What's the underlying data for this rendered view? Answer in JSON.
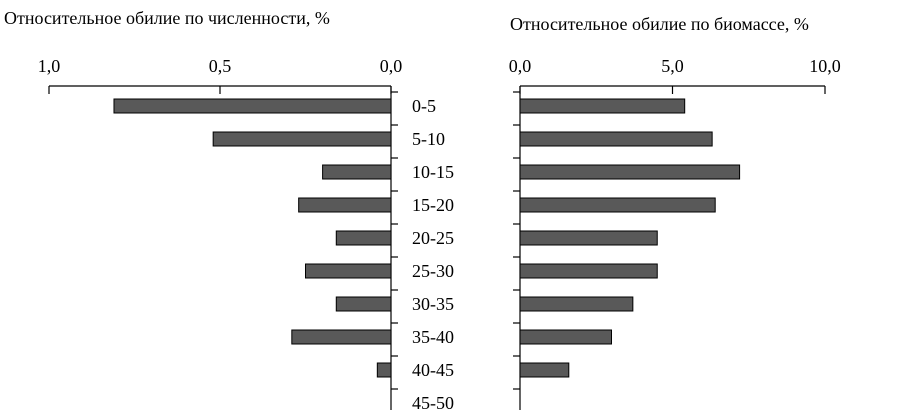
{
  "chart_data": [
    {
      "type": "bar",
      "orientation": "horizontal",
      "direction": "reversed",
      "title": "Относительное обилие по численности, %",
      "categories": [
        "0-5",
        "5-10",
        "10-15",
        "15-20",
        "20-25",
        "25-30",
        "30-35",
        "35-40",
        "40-45",
        "45-50"
      ],
      "values": [
        0.81,
        0.52,
        0.2,
        0.27,
        0.16,
        0.25,
        0.16,
        0.29,
        0.04,
        0
      ],
      "xlim": [
        0,
        1
      ],
      "ticks": [
        {
          "value": 1.0,
          "label": "1,0"
        },
        {
          "value": 0.5,
          "label": "0,5"
        },
        {
          "value": 0.0,
          "label": "0,0"
        }
      ],
      "axis_position": "top",
      "bar_color": "#595959"
    },
    {
      "type": "bar",
      "orientation": "horizontal",
      "direction": "normal",
      "title": "Относительное обилие по биомассе, %",
      "categories": [
        "0-5",
        "5-10",
        "10-15",
        "15-20",
        "20-25",
        "25-30",
        "30-35",
        "35-40",
        "40-45",
        "45-50"
      ],
      "values": [
        5.4,
        6.3,
        7.2,
        6.4,
        4.5,
        4.5,
        3.7,
        3.0,
        1.6,
        0
      ],
      "xlim": [
        0,
        10
      ],
      "ticks": [
        {
          "value": 0,
          "label": "0,0"
        },
        {
          "value": 5,
          "label": "5,0"
        },
        {
          "value": 10,
          "label": "10,0"
        }
      ],
      "axis_position": "top",
      "bar_color": "#595959"
    }
  ]
}
